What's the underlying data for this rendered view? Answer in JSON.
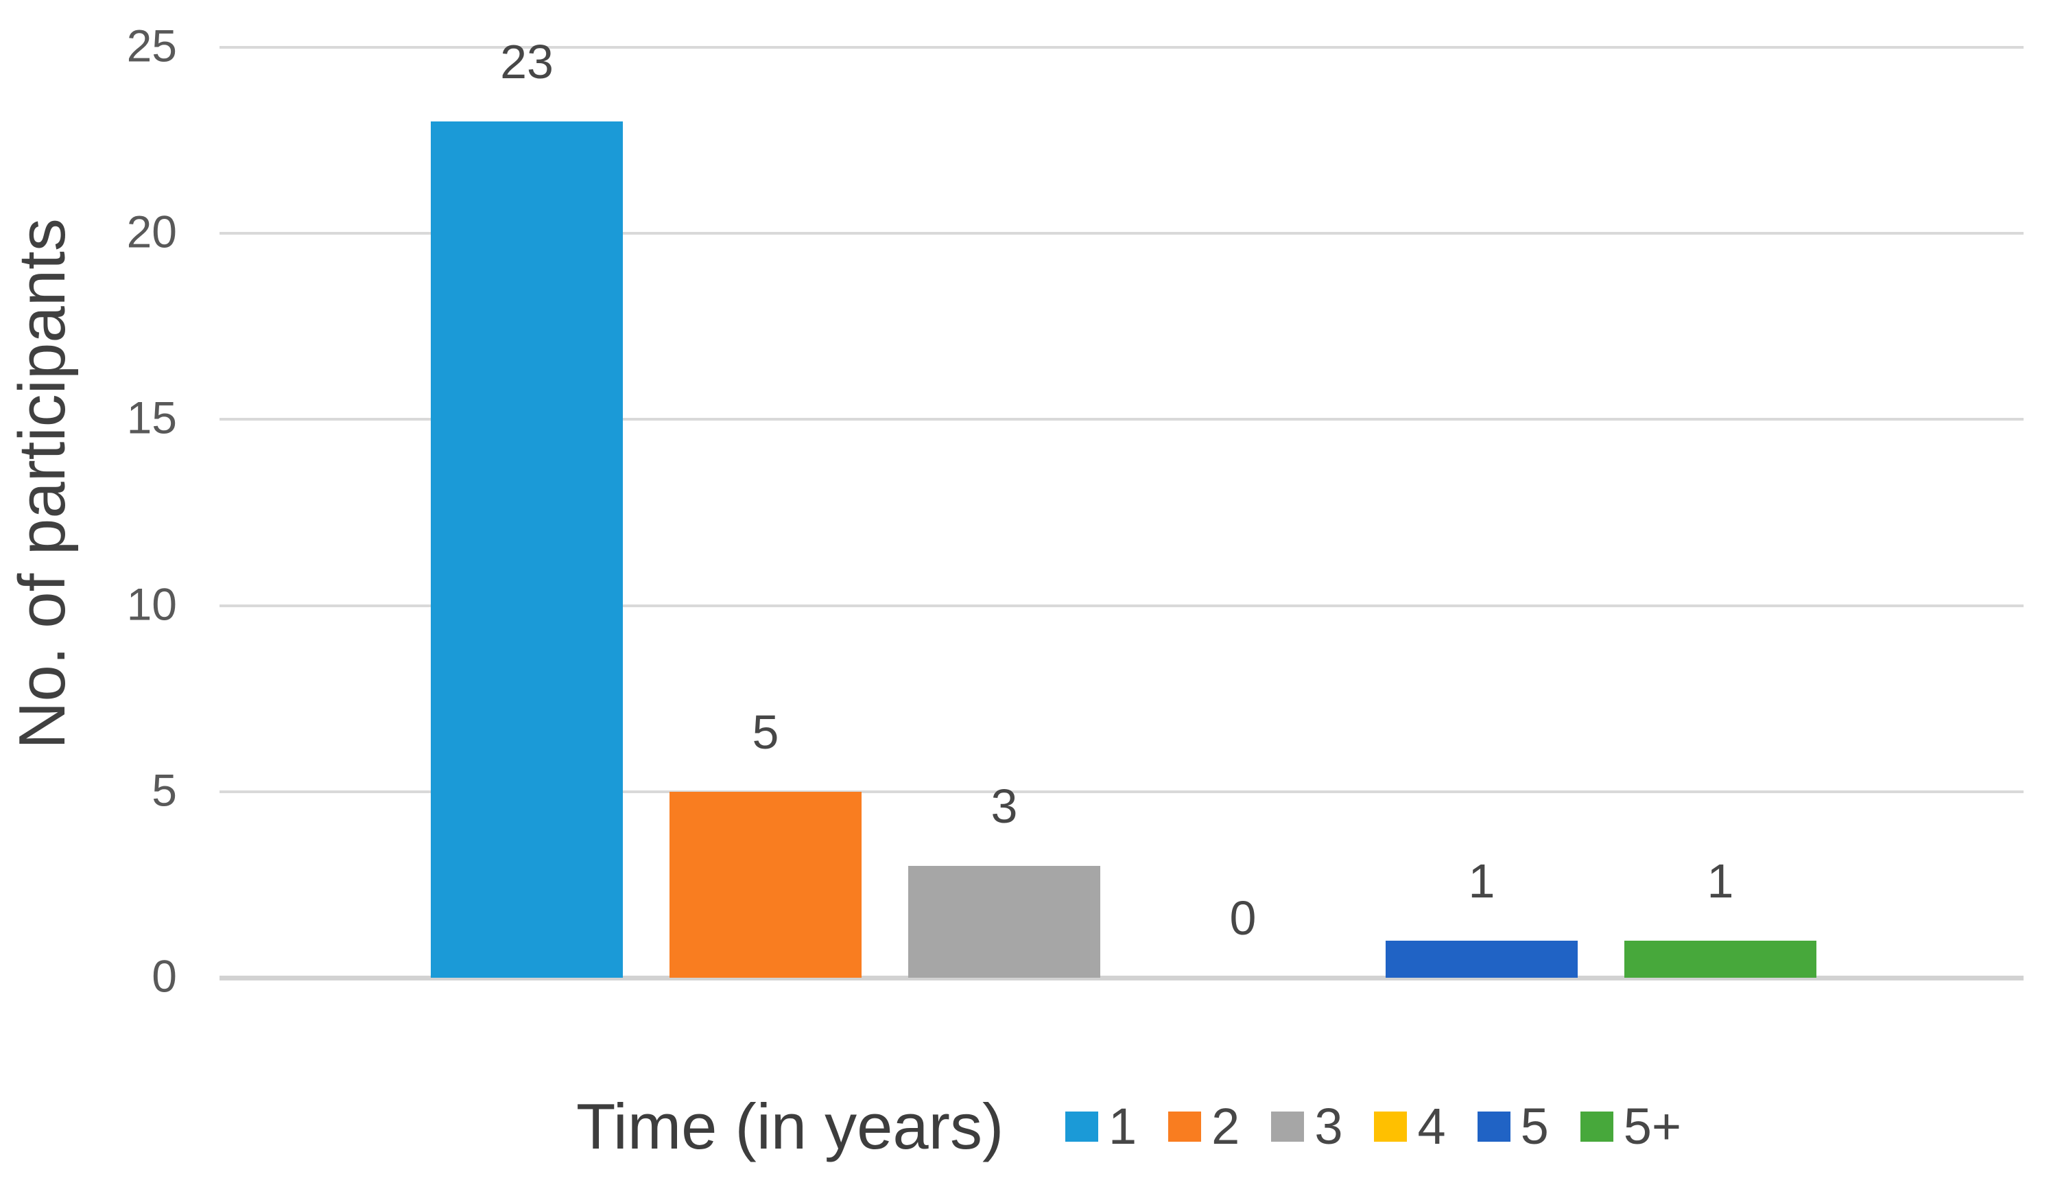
{
  "chart_data": {
    "type": "bar",
    "title": "",
    "xlabel": "Time (in years)",
    "ylabel": "No. of participants",
    "categories": [
      "1",
      "2",
      "3",
      "4",
      "5",
      "5+"
    ],
    "values": [
      23,
      5,
      3,
      0,
      1,
      1
    ],
    "value_labels": [
      "23",
      "5",
      "3",
      "0",
      "1",
      "1"
    ],
    "bar_colors": [
      "#1b9ad7",
      "#f97d20",
      "#a6a6a6",
      "#ffc000",
      "#2063c5",
      "#47a83b"
    ],
    "yticks": [
      0,
      5,
      10,
      15,
      20,
      25
    ],
    "ytick_labels": [
      "0",
      "5",
      "10",
      "15",
      "20",
      "25"
    ],
    "ylim": [
      0,
      25
    ],
    "grid": true,
    "legend_position": "bottom",
    "legend_items": [
      {
        "label": "1",
        "color": "#1b9ad7"
      },
      {
        "label": "2",
        "color": "#f97d20"
      },
      {
        "label": "3",
        "color": "#a6a6a6"
      },
      {
        "label": "4",
        "color": "#ffc000"
      },
      {
        "label": "5",
        "color": "#2063c5"
      },
      {
        "label": "5+",
        "color": "#47a83b"
      }
    ]
  },
  "colors": {
    "background": "#ffffff",
    "gridline": "#d9d9d9",
    "axis_line": "#d2d2d2",
    "tick_text": "#595959",
    "value_label_text": "#474747",
    "axis_title_text": "#3d3d3d",
    "legend_text": "#474747"
  }
}
